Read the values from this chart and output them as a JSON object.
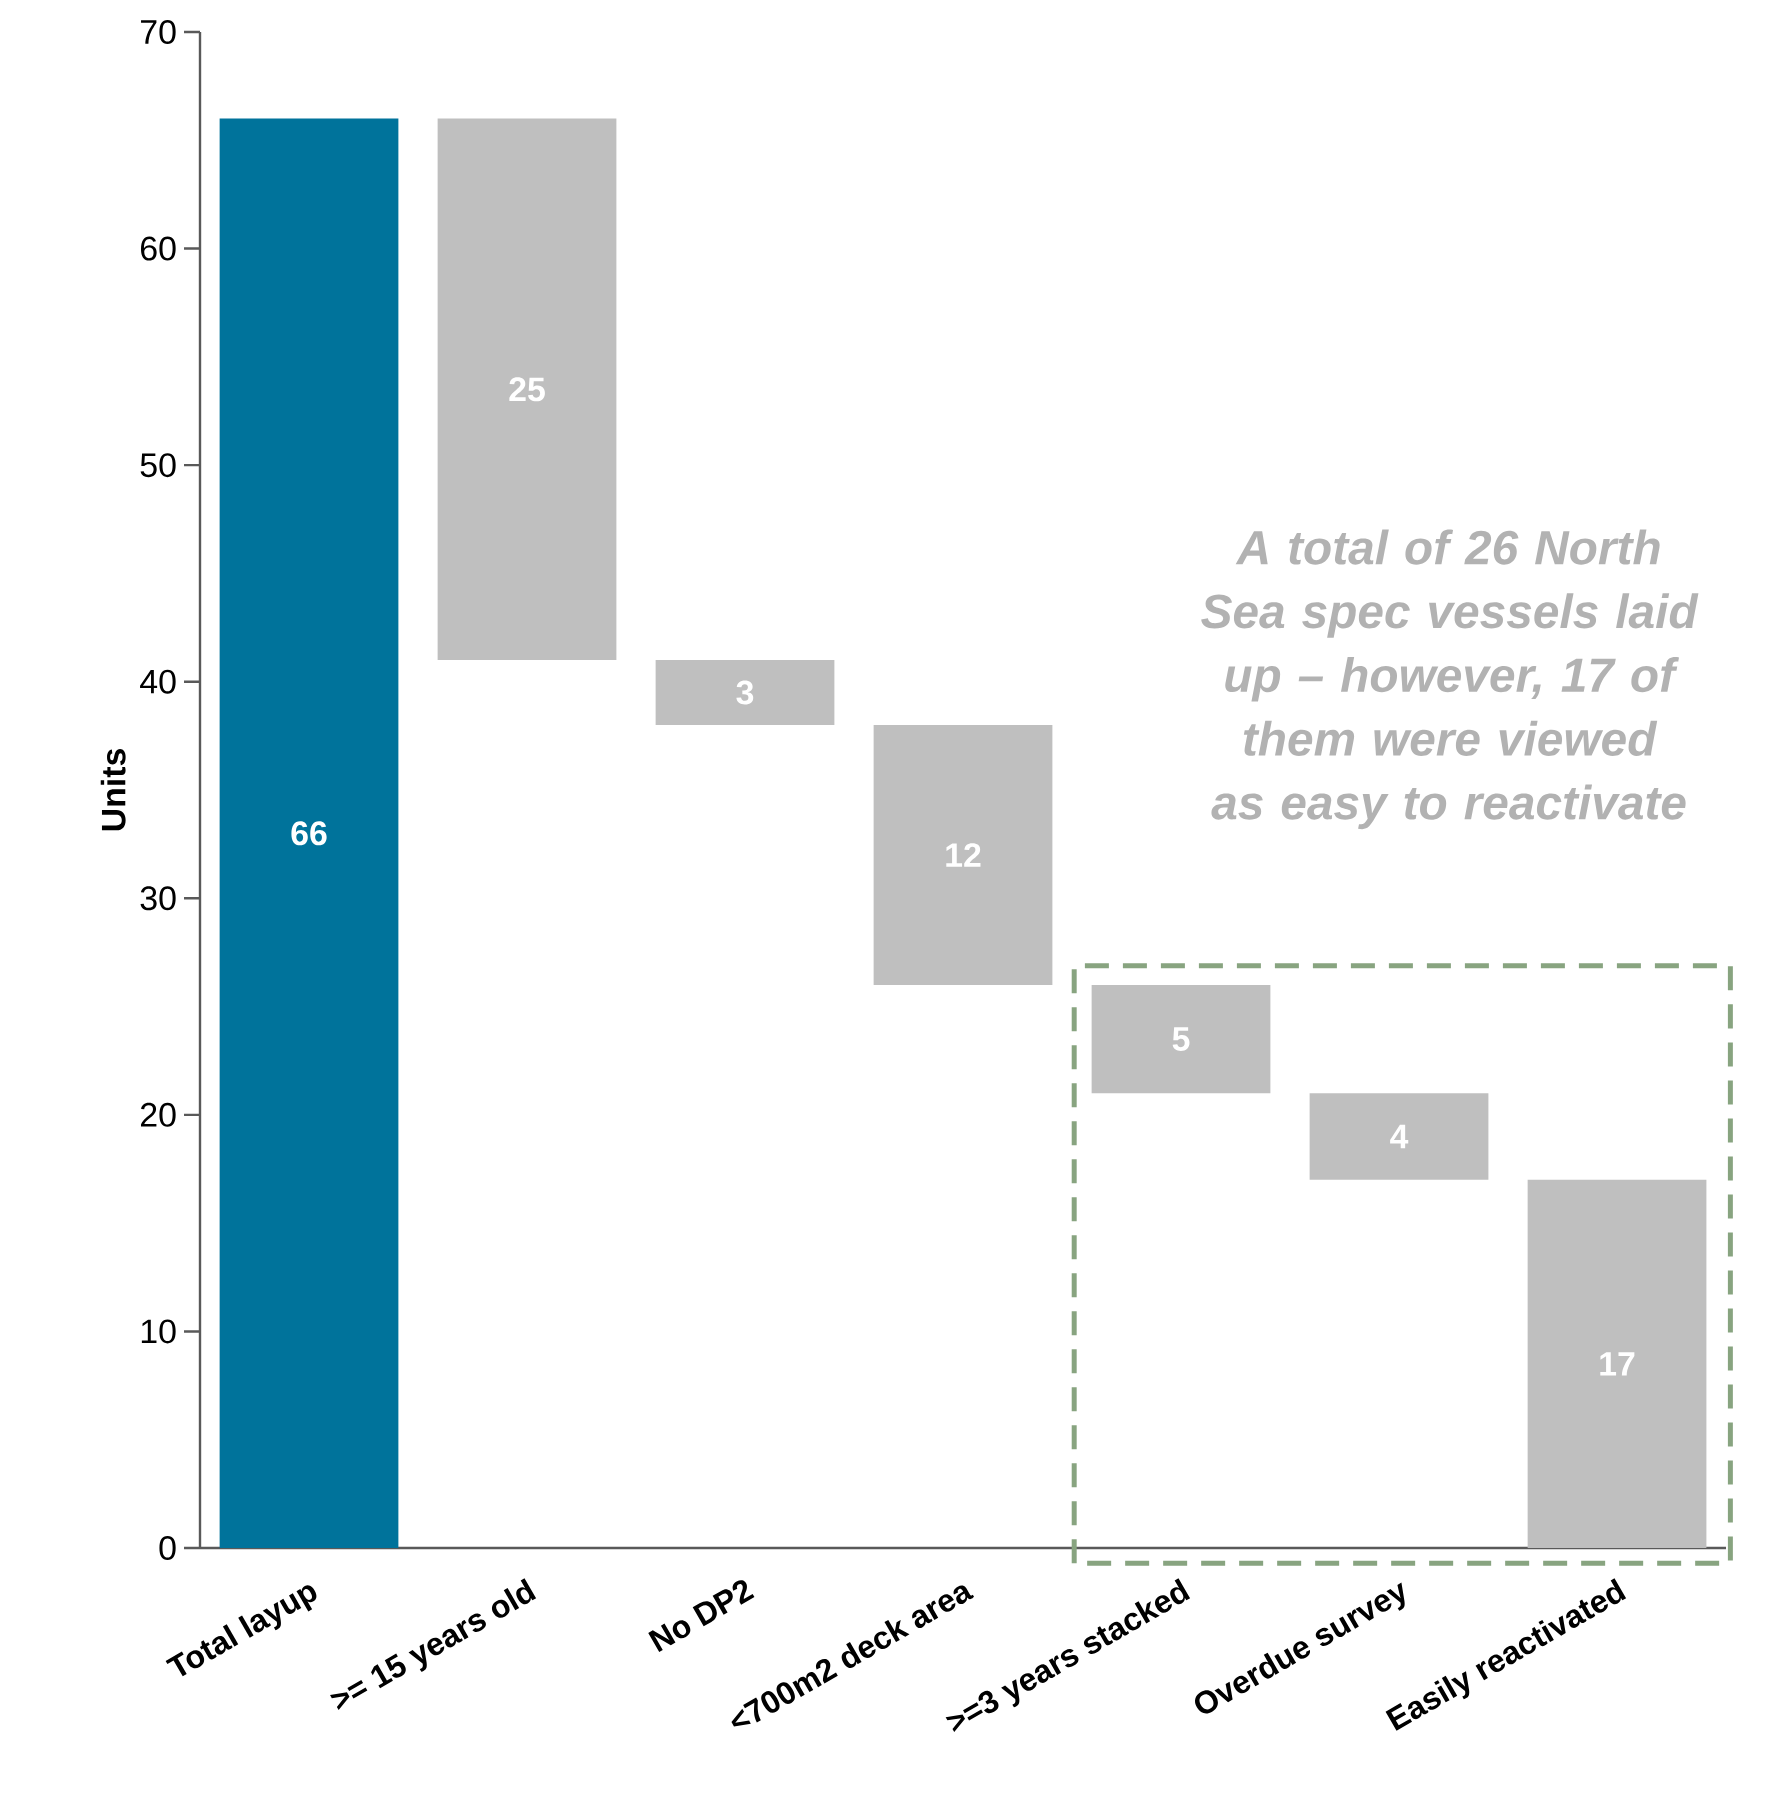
{
  "chart_data": {
    "type": "bar",
    "ylabel": "Units",
    "categories": [
      "Total layup",
      ">= 15 years old",
      "No DP2",
      "<700m2 deck area",
      ">=3 years stacked",
      "Overdue survey",
      "Easily reactivated"
    ],
    "values": [
      66,
      25,
      3,
      12,
      5,
      4,
      17
    ],
    "base": [
      0,
      41,
      38,
      26,
      21,
      17,
      0
    ],
    "colors": [
      "#00739b",
      "#bfbfbf",
      "#bfbfbf",
      "#bfbfbf",
      "#bfbfbf",
      "#bfbfbf",
      "#bfbfbf"
    ],
    "ylim": [
      0,
      70
    ],
    "yticks": [
      0,
      10,
      20,
      30,
      40,
      50,
      60,
      70
    ],
    "data_labels": true,
    "annotations": [
      "A total of 26 North Sea spec vessels laid up – however, 17 of them were viewed as easy to reactivate"
    ]
  }
}
